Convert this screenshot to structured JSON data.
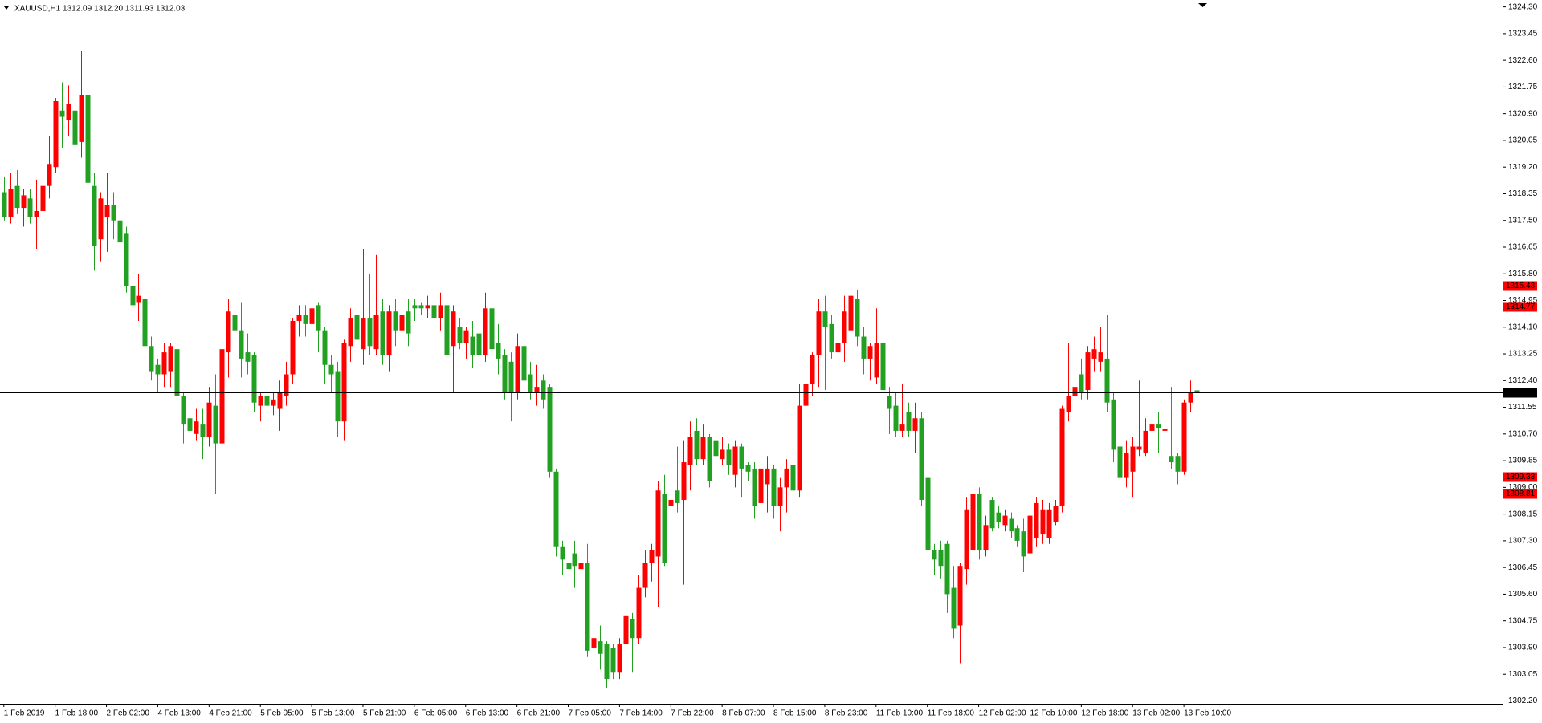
{
  "chart_data": {
    "type": "candlestick",
    "title": "XAUUSD,H1  1312.09 1312.20 1311.93 1312.03",
    "up_color": "#ff0000",
    "down_color": "#22a022",
    "ylim": [
      1302.11,
      1324.52
    ],
    "yticks": [
      {
        "value": 1324.3,
        "label": "1324.30"
      },
      1323.45,
      {
        "value": 1322.6,
        "label": "1322.60"
      },
      1321.75,
      {
        "value": 1320.9,
        "label": "1320.90"
      },
      1320.05,
      {
        "value": 1319.2,
        "label": "1319.20"
      },
      1318.35,
      {
        "value": 1317.5,
        "label": "1317.50"
      },
      1316.65,
      {
        "value": 1315.8,
        "label": "1315.80"
      },
      1314.95,
      {
        "value": 1314.1,
        "label": "1314.10"
      },
      1313.25,
      {
        "value": 1312.4,
        "label": "1312.40"
      },
      1311.55,
      {
        "value": 1310.7,
        "label": "1310.70"
      },
      1309.85,
      {
        "value": 1309,
        "label": "1309.00"
      },
      1308.15,
      {
        "value": 1307.3,
        "label": "1307.30"
      },
      1306.45,
      {
        "value": 1305.6,
        "label": "1305.60"
      },
      1304.75,
      {
        "value": 1303.9,
        "label": "1303.90"
      },
      1303.05,
      {
        "value": 1302.2,
        "label": "1302.20"
      }
    ],
    "xlim": [
      -0.6,
      233.7
    ],
    "xticks": [
      {
        "value": 0,
        "label": "1 Feb 2019"
      },
      {
        "value": 8,
        "label": "1 Feb 18:00"
      },
      {
        "value": 16,
        "label": "2 Feb 02:00"
      },
      {
        "value": 24,
        "label": "4 Feb 13:00"
      },
      {
        "value": 32,
        "label": "4 Feb 21:00"
      },
      {
        "value": 40,
        "label": "5 Feb 05:00"
      },
      {
        "value": 48,
        "label": "5 Feb 13:00"
      },
      {
        "value": 56,
        "label": "5 Feb 21:00"
      },
      {
        "value": 64,
        "label": "6 Feb 05:00"
      },
      {
        "value": 72,
        "label": "6 Feb 13:00"
      },
      {
        "value": 80,
        "label": "6 Feb 21:00"
      },
      {
        "value": 88,
        "label": "7 Feb 05:00"
      },
      {
        "value": 96,
        "label": "7 Feb 14:00"
      },
      {
        "value": 104,
        "label": "7 Feb 22:00"
      },
      {
        "value": 112,
        "label": "8 Feb 07:00"
      },
      {
        "value": 120,
        "label": "8 Feb 15:00"
      },
      {
        "value": 128,
        "label": "8 Feb 23:00"
      },
      {
        "value": 136,
        "label": "11 Feb 10:00"
      },
      {
        "value": 144,
        "label": "11 Feb 18:00"
      },
      {
        "value": 152,
        "label": "12 Feb 02:00"
      },
      {
        "value": 160,
        "label": "12 Feb 10:00"
      },
      {
        "value": 168,
        "label": "12 Feb 18:00"
      },
      {
        "value": 176,
        "label": "13 Feb 02:00"
      },
      {
        "value": 184,
        "label": "13 Feb 10:00"
      }
    ],
    "hlines": [
      {
        "value": 1315.43,
        "color": "#ff0000"
      },
      {
        "value": 1314.77,
        "color": "#ff0000"
      },
      {
        "value": 1309.33,
        "color": "#ff0000"
      },
      {
        "value": 1308.81,
        "color": "#ff0000"
      }
    ],
    "price_line": {
      "value": 1312.03,
      "color": "#000000"
    },
    "ohlc": [
      [
        1318.4,
        1318.9,
        1317.5,
        1317.6
      ],
      [
        1317.6,
        1319.0,
        1317.4,
        1318.5
      ],
      [
        1318.6,
        1319.1,
        1317.7,
        1317.9
      ],
      [
        1317.9,
        1318.5,
        1317.3,
        1318.3
      ],
      [
        1318.2,
        1318.5,
        1317.4,
        1317.6
      ],
      [
        1317.6,
        1318.8,
        1316.6,
        1317.8
      ],
      [
        1317.8,
        1319.3,
        1317.7,
        1318.6
      ],
      [
        1318.6,
        1320.2,
        1318.2,
        1319.3
      ],
      [
        1319.2,
        1321.4,
        1319.0,
        1321.3
      ],
      [
        1321.0,
        1321.9,
        1319.8,
        1320.8
      ],
      [
        1320.7,
        1321.8,
        1320.2,
        1321.2
      ],
      [
        1321.0,
        1323.4,
        1318.0,
        1319.9
      ],
      [
        1320.0,
        1322.9,
        1319.5,
        1321.5
      ],
      [
        1321.5,
        1321.6,
        1318.5,
        1318.7
      ],
      [
        1318.6,
        1319.0,
        1315.9,
        1316.7
      ],
      [
        1316.9,
        1318.4,
        1316.2,
        1318.2
      ],
      [
        1317.6,
        1319.0,
        1316.5,
        1318.0
      ],
      [
        1318.0,
        1318.4,
        1316.9,
        1317.5
      ],
      [
        1317.5,
        1319.2,
        1316.3,
        1316.8
      ],
      [
        1317.1,
        1317.3,
        1315.2,
        1315.4
      ],
      [
        1315.4,
        1315.5,
        1314.5,
        1314.8
      ],
      [
        1314.9,
        1315.8,
        1314.3,
        1315.1
      ],
      [
        1315.0,
        1315.3,
        1313.4,
        1313.5
      ],
      [
        1313.5,
        1313.8,
        1312.4,
        1312.7
      ],
      [
        1312.9,
        1313.1,
        1312.0,
        1312.6
      ],
      [
        1312.6,
        1313.6,
        1312.2,
        1313.3
      ],
      [
        1312.7,
        1313.6,
        1312.2,
        1313.5
      ],
      [
        1313.4,
        1313.5,
        1311.2,
        1311.9
      ],
      [
        1311.9,
        1312.0,
        1310.4,
        1311.0
      ],
      [
        1311.2,
        1311.6,
        1310.3,
        1310.8
      ],
      [
        1310.7,
        1311.5,
        1310.5,
        1311.1
      ],
      [
        1311.0,
        1311.5,
        1309.9,
        1310.6
      ],
      [
        1310.6,
        1312.2,
        1310.3,
        1311.7
      ],
      [
        1311.6,
        1312.6,
        1308.8,
        1310.4
      ],
      [
        1310.4,
        1313.6,
        1310.3,
        1313.4
      ],
      [
        1313.3,
        1315.0,
        1312.5,
        1314.6
      ],
      [
        1314.5,
        1314.9,
        1313.6,
        1314.0
      ],
      [
        1314.0,
        1314.9,
        1312.5,
        1313.1
      ],
      [
        1313.3,
        1313.9,
        1312.6,
        1313.0
      ],
      [
        1313.2,
        1313.3,
        1311.4,
        1311.7
      ],
      [
        1311.6,
        1312.0,
        1311.1,
        1311.9
      ],
      [
        1311.9,
        1312.1,
        1311.2,
        1311.6
      ],
      [
        1311.6,
        1312.0,
        1311.3,
        1311.8
      ],
      [
        1311.5,
        1312.4,
        1310.8,
        1312.0
      ],
      [
        1311.9,
        1313.0,
        1311.6,
        1312.6
      ],
      [
        1312.6,
        1314.4,
        1312.3,
        1314.3
      ],
      [
        1314.3,
        1314.8,
        1313.8,
        1314.5
      ],
      [
        1314.5,
        1314.8,
        1313.8,
        1314.2
      ],
      [
        1314.2,
        1315.0,
        1314.0,
        1314.7
      ],
      [
        1314.8,
        1314.9,
        1313.3,
        1314.0
      ],
      [
        1314.0,
        1314.1,
        1312.3,
        1312.9
      ],
      [
        1312.9,
        1313.2,
        1312.0,
        1312.6
      ],
      [
        1312.7,
        1313.0,
        1310.6,
        1311.1
      ],
      [
        1311.1,
        1313.7,
        1310.5,
        1313.6
      ],
      [
        1313.5,
        1314.7,
        1313.0,
        1314.4
      ],
      [
        1314.5,
        1314.8,
        1313.1,
        1313.7
      ],
      [
        1313.4,
        1316.6,
        1312.9,
        1314.4
      ],
      [
        1314.4,
        1315.8,
        1313.2,
        1313.5
      ],
      [
        1313.4,
        1316.4,
        1313.2,
        1314.5
      ],
      [
        1314.6,
        1315.0,
        1312.9,
        1313.2
      ],
      [
        1313.2,
        1314.8,
        1312.7,
        1314.6
      ],
      [
        1314.6,
        1315.0,
        1313.5,
        1314.0
      ],
      [
        1314.0,
        1315.1,
        1313.8,
        1314.5
      ],
      [
        1314.6,
        1315.0,
        1313.5,
        1313.9
      ],
      [
        1314.8,
        1315.0,
        1314.3,
        1314.7
      ],
      [
        1314.8,
        1314.9,
        1314.5,
        1314.7
      ],
      [
        1314.7,
        1315.1,
        1314.4,
        1314.8
      ],
      [
        1314.8,
        1315.3,
        1314.0,
        1314.4
      ],
      [
        1314.4,
        1315.2,
        1314.0,
        1314.8
      ],
      [
        1314.8,
        1315.0,
        1312.7,
        1313.2
      ],
      [
        1313.5,
        1314.8,
        1312.0,
        1314.6
      ],
      [
        1314.1,
        1314.4,
        1313.4,
        1313.6
      ],
      [
        1313.6,
        1314.1,
        1313.1,
        1314.0
      ],
      [
        1313.8,
        1314.3,
        1312.8,
        1313.2
      ],
      [
        1313.9,
        1314.5,
        1312.4,
        1313.2
      ],
      [
        1313.2,
        1315.2,
        1313.0,
        1314.7
      ],
      [
        1314.7,
        1315.2,
        1313.1,
        1313.4
      ],
      [
        1313.6,
        1314.2,
        1312.6,
        1313.1
      ],
      [
        1313.2,
        1313.4,
        1311.8,
        1312.0
      ],
      [
        1313.0,
        1313.3,
        1311.1,
        1312.0
      ],
      [
        1312.0,
        1313.9,
        1311.8,
        1313.5
      ],
      [
        1313.5,
        1314.9,
        1312.1,
        1312.4
      ],
      [
        1312.6,
        1313.0,
        1311.8,
        1312.0
      ],
      [
        1312.0,
        1312.9,
        1311.6,
        1312.2
      ],
      [
        1312.4,
        1312.6,
        1311.5,
        1311.8
      ],
      [
        1312.2,
        1312.3,
        1309.3,
        1309.5
      ],
      [
        1309.5,
        1309.6,
        1306.8,
        1307.1
      ],
      [
        1307.1,
        1307.3,
        1306.2,
        1306.7
      ],
      [
        1306.6,
        1306.8,
        1305.9,
        1306.4
      ],
      [
        1306.9,
        1307.3,
        1305.8,
        1306.5
      ],
      [
        1306.4,
        1307.6,
        1306.2,
        1306.6
      ],
      [
        1306.6,
        1307.2,
        1303.6,
        1303.8
      ],
      [
        1303.9,
        1305.0,
        1303.4,
        1304.2
      ],
      [
        1304.1,
        1304.6,
        1303.2,
        1303.7
      ],
      [
        1304.0,
        1304.1,
        1302.6,
        1302.9
      ],
      [
        1303.9,
        1304.0,
        1302.9,
        1303.1
      ],
      [
        1303.1,
        1304.2,
        1302.9,
        1304.0
      ],
      [
        1304.0,
        1305.0,
        1303.8,
        1304.9
      ],
      [
        1304.8,
        1305.0,
        1303.1,
        1304.2
      ],
      [
        1304.2,
        1306.2,
        1304.0,
        1305.8
      ],
      [
        1305.8,
        1307.0,
        1305.5,
        1306.6
      ],
      [
        1306.6,
        1307.2,
        1306.0,
        1307.0
      ],
      [
        1306.8,
        1309.2,
        1305.2,
        1308.9
      ],
      [
        1308.8,
        1309.4,
        1306.5,
        1306.6
      ],
      [
        1308.4,
        1311.6,
        1307.8,
        1308.6
      ],
      [
        1308.9,
        1310.3,
        1308.2,
        1308.5
      ],
      [
        1308.6,
        1310.5,
        1305.9,
        1309.8
      ],
      [
        1309.7,
        1311.1,
        1308.9,
        1310.6
      ],
      [
        1310.8,
        1311.2,
        1309.7,
        1309.9
      ],
      [
        1309.9,
        1311.0,
        1309.7,
        1310.6
      ],
      [
        1310.6,
        1310.7,
        1309.0,
        1309.2
      ],
      [
        1310.5,
        1310.8,
        1309.6,
        1310.0
      ],
      [
        1309.9,
        1310.6,
        1309.7,
        1310.2
      ],
      [
        1310.2,
        1310.4,
        1309.4,
        1309.7
      ],
      [
        1309.4,
        1310.5,
        1309.0,
        1310.3
      ],
      [
        1310.3,
        1310.4,
        1308.7,
        1309.6
      ],
      [
        1309.7,
        1309.8,
        1309.2,
        1309.5
      ],
      [
        1309.6,
        1309.8,
        1308.0,
        1308.4
      ],
      [
        1308.5,
        1309.7,
        1308.1,
        1309.6
      ],
      [
        1309.1,
        1310.0,
        1308.2,
        1309.6
      ],
      [
        1309.6,
        1309.7,
        1308.0,
        1308.4
      ],
      [
        1308.4,
        1309.3,
        1307.6,
        1309.0
      ],
      [
        1309.0,
        1309.9,
        1308.2,
        1309.6
      ],
      [
        1309.7,
        1310.1,
        1308.7,
        1308.9
      ],
      [
        1308.9,
        1312.3,
        1308.7,
        1311.6
      ],
      [
        1311.6,
        1312.7,
        1311.3,
        1312.3
      ],
      [
        1312.3,
        1313.3,
        1311.9,
        1313.2
      ],
      [
        1313.2,
        1315.0,
        1312.2,
        1314.6
      ],
      [
        1314.6,
        1315.1,
        1312.1,
        1314.1
      ],
      [
        1314.2,
        1314.5,
        1313.1,
        1313.3
      ],
      [
        1313.3,
        1314.2,
        1313.0,
        1313.6
      ],
      [
        1313.6,
        1315.1,
        1313.0,
        1314.6
      ],
      [
        1314.0,
        1315.4,
        1313.6,
        1315.1
      ],
      [
        1315.0,
        1315.3,
        1313.5,
        1313.8
      ],
      [
        1313.8,
        1314.1,
        1312.6,
        1313.1
      ],
      [
        1313.1,
        1313.6,
        1312.4,
        1313.5
      ],
      [
        1312.5,
        1314.7,
        1312.3,
        1313.6
      ],
      [
        1313.6,
        1313.7,
        1311.8,
        1312.1
      ],
      [
        1311.9,
        1312.2,
        1310.7,
        1311.5
      ],
      [
        1311.6,
        1312.0,
        1310.6,
        1310.8
      ],
      [
        1310.8,
        1312.3,
        1310.6,
        1311.0
      ],
      [
        1311.4,
        1311.7,
        1310.6,
        1310.8
      ],
      [
        1310.8,
        1311.7,
        1310.1,
        1311.2
      ],
      [
        1311.2,
        1311.4,
        1308.4,
        1308.6
      ],
      [
        1309.3,
        1309.5,
        1306.8,
        1307.0
      ],
      [
        1307.0,
        1307.2,
        1306.2,
        1306.7
      ],
      [
        1307.0,
        1307.3,
        1306.1,
        1306.5
      ],
      [
        1307.2,
        1307.3,
        1305.0,
        1305.6
      ],
      [
        1305.8,
        1306.5,
        1304.2,
        1304.5
      ],
      [
        1304.6,
        1306.6,
        1303.4,
        1306.5
      ],
      [
        1306.4,
        1308.7,
        1305.9,
        1308.3
      ],
      [
        1307.0,
        1310.1,
        1306.7,
        1308.8
      ],
      [
        1308.8,
        1309.0,
        1306.7,
        1307.0
      ],
      [
        1307.0,
        1308.1,
        1306.8,
        1307.8
      ],
      [
        1308.6,
        1308.7,
        1307.6,
        1307.7
      ],
      [
        1308.2,
        1308.4,
        1307.7,
        1307.9
      ],
      [
        1307.8,
        1308.3,
        1307.6,
        1308.1
      ],
      [
        1308.0,
        1308.2,
        1307.4,
        1307.6
      ],
      [
        1307.7,
        1307.8,
        1307.1,
        1307.3
      ],
      [
        1307.6,
        1308.0,
        1306.3,
        1306.8
      ],
      [
        1306.9,
        1309.2,
        1306.7,
        1308.1
      ],
      [
        1307.4,
        1308.7,
        1307.1,
        1308.5
      ],
      [
        1307.5,
        1308.6,
        1307.2,
        1308.3
      ],
      [
        1307.4,
        1308.5,
        1307.2,
        1308.3
      ],
      [
        1307.9,
        1308.6,
        1307.8,
        1308.4
      ],
      [
        1308.4,
        1311.6,
        1308.2,
        1311.5
      ],
      [
        1311.4,
        1313.6,
        1311.1,
        1311.9
      ],
      [
        1311.9,
        1313.5,
        1311.6,
        1312.2
      ],
      [
        1312.6,
        1313.1,
        1311.8,
        1312.0
      ],
      [
        1312.1,
        1313.5,
        1311.8,
        1313.3
      ],
      [
        1313.1,
        1313.8,
        1312.7,
        1313.4
      ],
      [
        1313.0,
        1314.1,
        1312.7,
        1313.3
      ],
      [
        1313.1,
        1314.5,
        1311.4,
        1311.7
      ],
      [
        1311.8,
        1312.0,
        1309.8,
        1310.2
      ],
      [
        1310.3,
        1310.5,
        1308.3,
        1309.3
      ],
      [
        1309.3,
        1310.5,
        1309.0,
        1310.1
      ],
      [
        1309.5,
        1310.6,
        1308.7,
        1310.3
      ],
      [
        1310.2,
        1312.4,
        1310.0,
        1310.3
      ],
      [
        1310.1,
        1311.2,
        1310.0,
        1310.8
      ],
      [
        1310.8,
        1311.2,
        1310.2,
        1311.0
      ],
      [
        1311.0,
        1311.4,
        1310.1,
        1310.9
      ],
      [
        1310.8,
        1310.9,
        1310.8,
        1310.85
      ],
      [
        1310.0,
        1312.2,
        1309.6,
        1309.8
      ],
      [
        1310.0,
        1310.1,
        1309.1,
        1309.5
      ],
      [
        1309.5,
        1311.8,
        1309.4,
        1311.7
      ],
      [
        1311.7,
        1312.4,
        1311.4,
        1312.0
      ],
      [
        1312.09,
        1312.2,
        1311.93,
        1312.03
      ]
    ]
  }
}
